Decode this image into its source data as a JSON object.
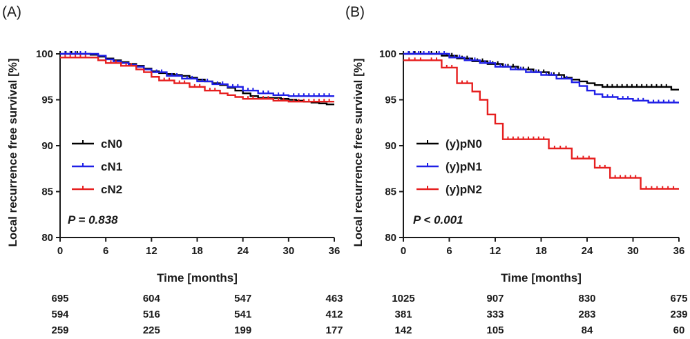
{
  "chart_data": [
    {
      "type": "line",
      "panel_label": "(A)",
      "xlabel": "Time [months]",
      "ylabel": "Local recurrence free survival [%]",
      "xlim": [
        0,
        36
      ],
      "ylim": [
        80,
        100
      ],
      "x_ticks": [
        0,
        6,
        12,
        18,
        24,
        30,
        36
      ],
      "y_ticks": [
        80,
        85,
        90,
        95,
        100
      ],
      "x_tick_labels": [
        "0",
        "6",
        "12",
        "18",
        "24",
        "30",
        "36"
      ],
      "y_tick_labels": [
        "80",
        "85",
        "90",
        "95",
        "100"
      ],
      "p_value": "P = 0.838",
      "legend_position": "center-left",
      "series": [
        {
          "name": "cN0",
          "color": "#000000",
          "x": [
            0,
            3,
            4,
            5,
            6,
            7,
            8,
            9,
            10,
            11,
            12,
            13,
            14,
            15,
            16,
            17,
            18,
            19,
            20,
            21,
            22,
            23,
            24,
            25,
            26,
            27,
            28,
            29,
            30,
            31,
            32,
            33,
            34,
            35,
            36
          ],
          "y": [
            100,
            100,
            99.9,
            99.7,
            99.5,
            99.3,
            99.1,
            98.9,
            98.7,
            98.4,
            98.1,
            97.9,
            97.8,
            97.7,
            97.6,
            97.4,
            97.2,
            97.0,
            96.8,
            96.6,
            96.3,
            96.0,
            95.7,
            95.4,
            95.2,
            95.2,
            95.2,
            95.1,
            95.0,
            94.9,
            94.8,
            94.7,
            94.6,
            94.5,
            94.5
          ]
        },
        {
          "name": "cN1",
          "color": "#1f1fe6",
          "x": [
            0,
            4,
            5,
            6,
            7,
            8,
            9,
            10,
            11,
            12,
            14,
            16,
            18,
            20,
            22,
            24,
            26,
            28,
            30,
            36
          ],
          "y": [
            100,
            100,
            99.8,
            99.4,
            99.2,
            99.0,
            98.8,
            98.6,
            98.3,
            98.0,
            97.6,
            97.3,
            97.0,
            96.7,
            96.4,
            96.0,
            95.7,
            95.5,
            95.4,
            95.4
          ]
        },
        {
          "name": "cN2",
          "color": "#e61f1f",
          "x": [
            0,
            4,
            5,
            6,
            8,
            10,
            11,
            12,
            13,
            15,
            17,
            19,
            21,
            22,
            23,
            24,
            26,
            28,
            30,
            36
          ],
          "y": [
            99.6,
            99.6,
            99.3,
            99.0,
            98.7,
            98.3,
            98.0,
            97.5,
            97.1,
            96.8,
            96.4,
            96.0,
            95.7,
            95.5,
            95.3,
            95.1,
            95.1,
            94.9,
            94.8,
            94.8
          ]
        }
      ],
      "risk_table": {
        "x": [
          0,
          12,
          24,
          36
        ],
        "rows": [
          [
            "695",
            "604",
            "547",
            "463"
          ],
          [
            "594",
            "516",
            "541",
            "412"
          ],
          [
            "259",
            "225",
            "199",
            "177"
          ]
        ]
      }
    },
    {
      "type": "line",
      "panel_label": "(B)",
      "xlabel": "Time [months]",
      "ylabel": "Local recurrence free survival [%]",
      "xlim": [
        0,
        36
      ],
      "ylim": [
        80,
        100
      ],
      "x_ticks": [
        0,
        6,
        12,
        18,
        24,
        30,
        36
      ],
      "y_ticks": [
        80,
        85,
        90,
        95,
        100
      ],
      "x_tick_labels": [
        "0",
        "6",
        "12",
        "18",
        "24",
        "30",
        "36"
      ],
      "y_tick_labels": [
        "80",
        "85",
        "90",
        "95",
        "100"
      ],
      "p_value": "P < 0.001",
      "legend_position": "center-left",
      "series": [
        {
          "name": "(y)pN0",
          "color": "#000000",
          "x": [
            0,
            3,
            5,
            7,
            9,
            11,
            13,
            15,
            17,
            19,
            21,
            22,
            23,
            24,
            25,
            26,
            35,
            36
          ],
          "y": [
            100,
            100,
            99.8,
            99.5,
            99.2,
            98.9,
            98.6,
            98.3,
            98.0,
            97.7,
            97.4,
            97.2,
            97.0,
            96.8,
            96.6,
            96.4,
            96.1,
            96.1
          ]
        },
        {
          "name": "(y)pN1",
          "color": "#1f1fe6",
          "x": [
            0,
            4,
            6,
            8,
            10,
            12,
            14,
            16,
            18,
            20,
            22,
            23,
            24,
            25,
            26,
            28,
            30,
            32,
            36
          ],
          "y": [
            100,
            100,
            99.6,
            99.3,
            99.0,
            98.6,
            98.3,
            98.0,
            97.7,
            97.3,
            96.9,
            96.5,
            96.0,
            95.6,
            95.3,
            95.1,
            94.9,
            94.7,
            94.7
          ]
        },
        {
          "name": "(y)pN2",
          "color": "#e61f1f",
          "x": [
            0,
            3,
            5,
            7,
            9,
            10,
            11,
            12,
            13,
            19,
            22,
            25,
            27,
            31,
            36
          ],
          "y": [
            99.3,
            99.3,
            98.5,
            96.8,
            95.9,
            95.0,
            93.4,
            92.4,
            90.7,
            89.7,
            88.6,
            87.6,
            86.5,
            85.3,
            85.3
          ]
        }
      ],
      "risk_table": {
        "x": [
          0,
          12,
          24,
          36
        ],
        "rows": [
          [
            "1025",
            "907",
            "830",
            "675"
          ],
          [
            "381",
            "333",
            "283",
            "239"
          ],
          [
            "142",
            "105",
            "84",
            "60"
          ]
        ]
      }
    }
  ]
}
